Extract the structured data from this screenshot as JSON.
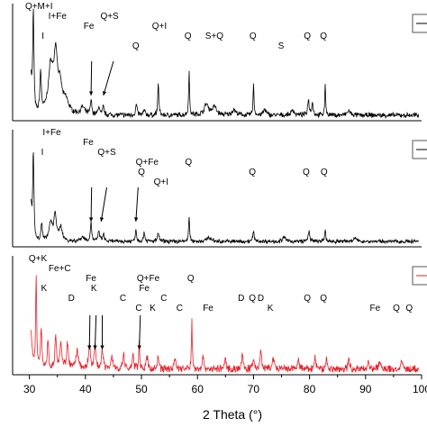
{
  "chart_data": {
    "type": "line",
    "xlabel": "2 Theta (°)",
    "xlim": [
      27,
      100
    ],
    "x_ticks": [
      30,
      40,
      50,
      60,
      70,
      80,
      90,
      100
    ],
    "grid": false,
    "series": [
      {
        "color": "#000000",
        "noise": 2.2,
        "peaks": [
          {
            "x": 30.7,
            "h": 110,
            "w": 0.25
          },
          {
            "x": 32.0,
            "h": 45,
            "w": 0.3
          },
          {
            "x": 33.8,
            "h": 50,
            "w": 1.0
          },
          {
            "x": 34.7,
            "h": 62,
            "w": 0.8
          },
          {
            "x": 35.5,
            "h": 25,
            "w": 0.8
          },
          {
            "x": 36.5,
            "h": 14,
            "w": 1.2
          },
          {
            "x": 39.5,
            "h": 8,
            "w": 0.8
          },
          {
            "x": 41.0,
            "h": 16,
            "w": 0.3
          },
          {
            "x": 42.4,
            "h": 10,
            "w": 0.3
          },
          {
            "x": 43.2,
            "h": 9,
            "w": 0.3
          },
          {
            "x": 49.1,
            "h": 12,
            "w": 0.3
          },
          {
            "x": 50.5,
            "h": 6,
            "w": 0.3
          },
          {
            "x": 53.0,
            "h": 38,
            "w": 0.2
          },
          {
            "x": 58.5,
            "h": 48,
            "w": 0.2
          },
          {
            "x": 61.6,
            "h": 12,
            "w": 0.9
          },
          {
            "x": 63.0,
            "h": 9,
            "w": 0.9
          },
          {
            "x": 66.5,
            "h": 6,
            "w": 0.8
          },
          {
            "x": 70.0,
            "h": 34,
            "w": 0.2
          },
          {
            "x": 72.0,
            "h": 6,
            "w": 0.6
          },
          {
            "x": 77.0,
            "h": 6,
            "w": 0.6
          },
          {
            "x": 79.8,
            "h": 18,
            "w": 0.3
          },
          {
            "x": 80.5,
            "h": 14,
            "w": 0.3
          },
          {
            "x": 82.8,
            "h": 33,
            "w": 0.2
          },
          {
            "x": 87.0,
            "h": 5,
            "w": 0.6
          }
        ]
      },
      {
        "color": "#000000",
        "noise": 1.8,
        "peaks": [
          {
            "x": 30.7,
            "h": 95,
            "w": 0.25
          },
          {
            "x": 32.2,
            "h": 20,
            "w": 0.3
          },
          {
            "x": 33.8,
            "h": 20,
            "w": 0.7
          },
          {
            "x": 34.6,
            "h": 30,
            "w": 0.5
          },
          {
            "x": 35.6,
            "h": 16,
            "w": 0.6
          },
          {
            "x": 39.5,
            "h": 5,
            "w": 0.8
          },
          {
            "x": 41.0,
            "h": 22,
            "w": 0.25
          },
          {
            "x": 42.4,
            "h": 12,
            "w": 0.3
          },
          {
            "x": 43.2,
            "h": 8,
            "w": 0.3
          },
          {
            "x": 49.0,
            "h": 14,
            "w": 0.25
          },
          {
            "x": 50.5,
            "h": 10,
            "w": 0.3
          },
          {
            "x": 53.0,
            "h": 10,
            "w": 0.3
          },
          {
            "x": 58.5,
            "h": 28,
            "w": 0.2
          },
          {
            "x": 62.0,
            "h": 5,
            "w": 0.7
          },
          {
            "x": 70.0,
            "h": 10,
            "w": 0.3
          },
          {
            "x": 75.5,
            "h": 5,
            "w": 0.5
          },
          {
            "x": 79.9,
            "h": 12,
            "w": 0.3
          },
          {
            "x": 82.8,
            "h": 14,
            "w": 0.2
          },
          {
            "x": 88.0,
            "h": 4,
            "w": 0.6
          }
        ]
      },
      {
        "color": "#e8202a",
        "noise": 3.5,
        "peaks": [
          {
            "x": 31.2,
            "h": 105,
            "w": 0.22
          },
          {
            "x": 32.1,
            "h": 45,
            "w": 0.3
          },
          {
            "x": 33.3,
            "h": 30,
            "w": 0.3
          },
          {
            "x": 34.7,
            "h": 40,
            "w": 0.3
          },
          {
            "x": 35.6,
            "h": 30,
            "w": 0.4
          },
          {
            "x": 36.8,
            "h": 28,
            "w": 0.4
          },
          {
            "x": 38.5,
            "h": 20,
            "w": 0.5
          },
          {
            "x": 40.7,
            "h": 28,
            "w": 0.35
          },
          {
            "x": 41.7,
            "h": 24,
            "w": 0.35
          },
          {
            "x": 43.0,
            "h": 22,
            "w": 0.35
          },
          {
            "x": 44.7,
            "h": 15,
            "w": 0.4
          },
          {
            "x": 46.8,
            "h": 18,
            "w": 0.3
          },
          {
            "x": 48.5,
            "h": 16,
            "w": 0.3
          },
          {
            "x": 49.6,
            "h": 32,
            "w": 0.2
          },
          {
            "x": 51.0,
            "h": 14,
            "w": 0.3
          },
          {
            "x": 53.0,
            "h": 15,
            "w": 0.3
          },
          {
            "x": 56.0,
            "h": 12,
            "w": 0.4
          },
          {
            "x": 59.0,
            "h": 55,
            "w": 0.18
          },
          {
            "x": 61.0,
            "h": 12,
            "w": 0.4
          },
          {
            "x": 65.0,
            "h": 10,
            "w": 0.4
          },
          {
            "x": 68.0,
            "h": 16,
            "w": 0.3
          },
          {
            "x": 70.0,
            "h": 12,
            "w": 0.3
          },
          {
            "x": 71.3,
            "h": 22,
            "w": 0.3
          },
          {
            "x": 73.5,
            "h": 12,
            "w": 0.4
          },
          {
            "x": 78.0,
            "h": 10,
            "w": 0.4
          },
          {
            "x": 81.0,
            "h": 14,
            "w": 0.3
          },
          {
            "x": 83.0,
            "h": 12,
            "w": 0.3
          },
          {
            "x": 87.0,
            "h": 10,
            "w": 0.4
          },
          {
            "x": 90.5,
            "h": 9,
            "w": 0.4
          },
          {
            "x": 92.5,
            "h": 8,
            "w": 0.4
          },
          {
            "x": 96.5,
            "h": 8,
            "w": 0.4
          }
        ]
      }
    ],
    "annotations": [
      {
        "panel": 0,
        "text": "Q+M+I",
        "x": 31.7,
        "lift": 0
      },
      {
        "panel": 0,
        "text": "I+Fe",
        "x": 35.0,
        "lift": 1
      },
      {
        "panel": 0,
        "text": "I",
        "x": 32.4,
        "lift": 3
      },
      {
        "panel": 0,
        "text": "Fe",
        "x": 40.6,
        "lift": 2
      },
      {
        "panel": 0,
        "text": "Q+S",
        "x": 44.3,
        "lift": 1
      },
      {
        "panel": 0,
        "text": "Q+I",
        "x": 53.2,
        "lift": 2
      },
      {
        "panel": 0,
        "text": "Q",
        "x": 49.0,
        "lift": 4
      },
      {
        "panel": 0,
        "text": "Q",
        "x": 58.3,
        "lift": 3
      },
      {
        "panel": 0,
        "text": "S+Q",
        "x": 63.0,
        "lift": 3
      },
      {
        "panel": 0,
        "text": "Q",
        "x": 69.9,
        "lift": 3
      },
      {
        "panel": 0,
        "text": "S",
        "x": 74.9,
        "lift": 4
      },
      {
        "panel": 0,
        "text": "Q",
        "x": 79.6,
        "lift": 3
      },
      {
        "panel": 0,
        "text": "Q",
        "x": 82.5,
        "lift": 3
      },
      {
        "panel": 1,
        "text": "I+Fe",
        "x": 34.0,
        "lift": 0
      },
      {
        "panel": 1,
        "text": "Fe",
        "x": 40.5,
        "lift": 1
      },
      {
        "panel": 1,
        "text": "I",
        "x": 32.3,
        "lift": 2
      },
      {
        "panel": 1,
        "text": "Q+S",
        "x": 43.8,
        "lift": 2
      },
      {
        "panel": 1,
        "text": "Q+Fe",
        "x": 51.0,
        "lift": 3
      },
      {
        "panel": 1,
        "text": "Q",
        "x": 58.4,
        "lift": 3
      },
      {
        "panel": 1,
        "text": "Q",
        "x": 50.0,
        "lift": 4
      },
      {
        "panel": 1,
        "text": "Q+I",
        "x": 53.5,
        "lift": 5
      },
      {
        "panel": 1,
        "text": "Q",
        "x": 69.8,
        "lift": 4
      },
      {
        "panel": 1,
        "text": "Q",
        "x": 79.4,
        "lift": 4
      },
      {
        "panel": 1,
        "text": "Q",
        "x": 82.6,
        "lift": 4
      },
      {
        "panel": 2,
        "text": "Q+K",
        "x": 31.5,
        "lift": 0
      },
      {
        "panel": 2,
        "text": "Fe+C",
        "x": 35.4,
        "lift": 1
      },
      {
        "panel": 2,
        "text": "Fe",
        "x": 41.0,
        "lift": 2
      },
      {
        "panel": 2,
        "text": "Q+Fe",
        "x": 51.2,
        "lift": 2
      },
      {
        "panel": 2,
        "text": "Q",
        "x": 58.8,
        "lift": 2
      },
      {
        "panel": 2,
        "text": "K",
        "x": 32.6,
        "lift": 3
      },
      {
        "panel": 2,
        "text": "K",
        "x": 41.5,
        "lift": 3
      },
      {
        "panel": 2,
        "text": "Fe",
        "x": 50.5,
        "lift": 3
      },
      {
        "panel": 2,
        "text": "D",
        "x": 37.5,
        "lift": 4
      },
      {
        "panel": 2,
        "text": "C",
        "x": 46.7,
        "lift": 4
      },
      {
        "panel": 2,
        "text": "C",
        "x": 54.0,
        "lift": 4
      },
      {
        "panel": 2,
        "text": "C",
        "x": 56.8,
        "lift": 5
      },
      {
        "panel": 2,
        "text": "K",
        "x": 52.0,
        "lift": 5
      },
      {
        "panel": 2,
        "text": "C",
        "x": 49.5,
        "lift": 5
      },
      {
        "panel": 2,
        "text": "Fe",
        "x": 61.9,
        "lift": 5
      },
      {
        "panel": 2,
        "text": "D",
        "x": 67.8,
        "lift": 4
      },
      {
        "panel": 2,
        "text": "Q",
        "x": 69.8,
        "lift": 4
      },
      {
        "panel": 2,
        "text": "D",
        "x": 71.3,
        "lift": 4
      },
      {
        "panel": 2,
        "text": "K",
        "x": 73.0,
        "lift": 5
      },
      {
        "panel": 2,
        "text": "Q",
        "x": 79.6,
        "lift": 4
      },
      {
        "panel": 2,
        "text": "Q",
        "x": 82.5,
        "lift": 4
      },
      {
        "panel": 2,
        "text": "Fe",
        "x": 91.7,
        "lift": 5
      },
      {
        "panel": 2,
        "text": "Q",
        "x": 95.5,
        "lift": 5
      },
      {
        "panel": 2,
        "text": "Q",
        "x": 97.8,
        "lift": 5
      }
    ],
    "arrows": [
      {
        "panel": 0,
        "from": 45.0,
        "to": 43.2
      },
      {
        "panel": 0,
        "from": 41.1,
        "to": 41.0
      },
      {
        "panel": 1,
        "from": 41.1,
        "to": 41.0
      },
      {
        "panel": 1,
        "from": 43.8,
        "to": 42.8
      },
      {
        "panel": 1,
        "from": 49.4,
        "to": 49.0
      },
      {
        "panel": 2,
        "from": 40.8,
        "to": 40.7
      },
      {
        "panel": 2,
        "from": 41.9,
        "to": 41.7
      },
      {
        "panel": 2,
        "from": 43.0,
        "to": 43.0
      },
      {
        "panel": 2,
        "from": 49.8,
        "to": 49.6
      }
    ]
  }
}
